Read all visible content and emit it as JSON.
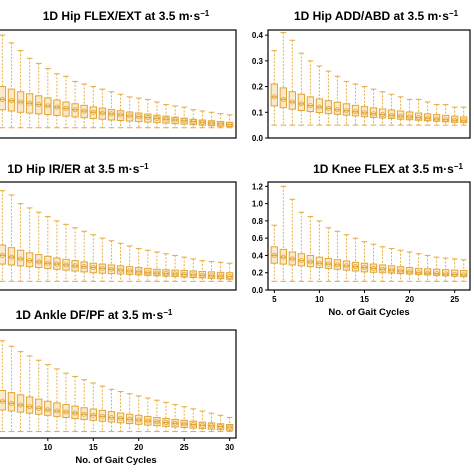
{
  "chart_data": [
    {
      "type": "box",
      "title": "1D Hip FLEX/EXT at 3.5 m·s",
      "title_superscript": "−1",
      "xlabel": "",
      "x_ticks": [],
      "y_ticks": [],
      "gait_cycles": [
        5,
        6,
        7,
        8,
        9,
        10,
        11,
        12,
        13,
        14,
        15,
        16,
        17,
        18,
        19,
        20,
        21,
        22,
        23,
        24,
        25,
        26,
        27,
        28,
        29,
        30
      ],
      "medians": [
        0.15,
        0.145,
        0.14,
        0.135,
        0.13,
        0.125,
        0.12,
        0.115,
        0.11,
        0.105,
        0.1,
        0.097,
        0.094,
        0.09,
        0.086,
        0.083,
        0.08,
        0.076,
        0.073,
        0.07,
        0.067,
        0.064,
        0.061,
        0.058,
        0.055,
        0.052
      ],
      "q1": [
        0.11,
        0.105,
        0.1,
        0.097,
        0.094,
        0.091,
        0.088,
        0.085,
        0.082,
        0.079,
        0.076,
        0.073,
        0.07,
        0.068,
        0.066,
        0.064,
        0.062,
        0.06,
        0.058,
        0.056,
        0.054,
        0.052,
        0.05,
        0.048,
        0.046,
        0.044
      ],
      "q3": [
        0.2,
        0.19,
        0.18,
        0.172,
        0.164,
        0.156,
        0.148,
        0.14,
        0.133,
        0.127,
        0.121,
        0.116,
        0.111,
        0.106,
        0.101,
        0.097,
        0.093,
        0.089,
        0.085,
        0.081,
        0.077,
        0.073,
        0.07,
        0.067,
        0.064,
        0.061
      ],
      "whisker_low": [
        0.04,
        0.04,
        0.04,
        0.04,
        0.04,
        0.04,
        0.04,
        0.04,
        0.04,
        0.04,
        0.04,
        0.04,
        0.04,
        0.04,
        0.04,
        0.04,
        0.04,
        0.04,
        0.04,
        0.04,
        0.04,
        0.04,
        0.04,
        0.04,
        0.04,
        0.04
      ],
      "whisker_high": [
        0.4,
        0.37,
        0.34,
        0.31,
        0.29,
        0.27,
        0.25,
        0.24,
        0.22,
        0.21,
        0.2,
        0.19,
        0.18,
        0.17,
        0.16,
        0.155,
        0.15,
        0.14,
        0.13,
        0.125,
        0.12,
        0.11,
        0.105,
        0.1,
        0.095,
        0.09
      ],
      "ylim": [
        0.0,
        0.42
      ]
    },
    {
      "type": "box",
      "title": "1D Hip ADD/ABD at 3.5 m·s",
      "title_superscript": "−1",
      "xlabel": "",
      "x_ticks": [],
      "y_ticks": [
        "0.0",
        "0.1",
        "0.2",
        "0.3",
        "0.4"
      ],
      "gait_cycles": [
        5,
        6,
        7,
        8,
        9,
        10,
        11,
        12,
        13,
        14,
        15,
        16,
        17,
        18,
        19,
        20,
        21,
        22,
        23,
        24,
        25,
        26
      ],
      "medians": [
        0.16,
        0.15,
        0.14,
        0.133,
        0.126,
        0.12,
        0.115,
        0.11,
        0.106,
        0.102,
        0.098,
        0.094,
        0.091,
        0.088,
        0.085,
        0.082,
        0.079,
        0.077,
        0.074,
        0.071,
        0.069,
        0.067
      ],
      "q1": [
        0.125,
        0.118,
        0.112,
        0.107,
        0.103,
        0.099,
        0.095,
        0.092,
        0.089,
        0.086,
        0.083,
        0.08,
        0.078,
        0.076,
        0.073,
        0.071,
        0.069,
        0.067,
        0.065,
        0.063,
        0.061,
        0.06
      ],
      "q3": [
        0.21,
        0.195,
        0.18,
        0.17,
        0.16,
        0.152,
        0.145,
        0.139,
        0.133,
        0.127,
        0.122,
        0.117,
        0.113,
        0.109,
        0.105,
        0.101,
        0.097,
        0.094,
        0.091,
        0.088,
        0.085,
        0.082
      ],
      "whisker_low": [
        0.05,
        0.05,
        0.05,
        0.05,
        0.05,
        0.05,
        0.05,
        0.05,
        0.05,
        0.05,
        0.05,
        0.05,
        0.05,
        0.05,
        0.05,
        0.05,
        0.05,
        0.05,
        0.05,
        0.05,
        0.05,
        0.05
      ],
      "whisker_high": [
        0.34,
        0.41,
        0.38,
        0.33,
        0.3,
        0.28,
        0.26,
        0.24,
        0.22,
        0.21,
        0.2,
        0.19,
        0.18,
        0.17,
        0.16,
        0.15,
        0.15,
        0.14,
        0.13,
        0.13,
        0.12,
        0.12
      ],
      "ylim": [
        0.0,
        0.42
      ]
    },
    {
      "type": "box",
      "title": "1D Hip IR/ER at 3.5 m·s",
      "title_superscript": "−1",
      "xlabel": "",
      "x_ticks": [],
      "y_ticks": [],
      "gait_cycles": [
        5,
        6,
        7,
        8,
        9,
        10,
        11,
        12,
        13,
        14,
        15,
        16,
        17,
        18,
        19,
        20,
        21,
        22,
        23,
        24,
        25,
        26,
        27,
        28,
        29,
        30
      ],
      "medians": [
        0.4,
        0.38,
        0.36,
        0.34,
        0.325,
        0.31,
        0.3,
        0.29,
        0.28,
        0.27,
        0.26,
        0.25,
        0.24,
        0.23,
        0.22,
        0.21,
        0.2,
        0.195,
        0.19,
        0.185,
        0.18,
        0.175,
        0.17,
        0.165,
        0.16,
        0.155
      ],
      "q1": [
        0.3,
        0.29,
        0.28,
        0.27,
        0.26,
        0.25,
        0.24,
        0.23,
        0.22,
        0.21,
        0.2,
        0.195,
        0.19,
        0.185,
        0.18,
        0.175,
        0.17,
        0.165,
        0.16,
        0.155,
        0.15,
        0.145,
        0.14,
        0.135,
        0.13,
        0.125
      ],
      "q3": [
        0.52,
        0.49,
        0.46,
        0.43,
        0.41,
        0.39,
        0.37,
        0.355,
        0.34,
        0.325,
        0.31,
        0.3,
        0.29,
        0.28,
        0.27,
        0.26,
        0.25,
        0.24,
        0.235,
        0.23,
        0.225,
        0.22,
        0.215,
        0.21,
        0.205,
        0.2
      ],
      "whisker_low": [
        0.1,
        0.1,
        0.1,
        0.1,
        0.1,
        0.1,
        0.1,
        0.1,
        0.1,
        0.1,
        0.1,
        0.1,
        0.1,
        0.1,
        0.1,
        0.1,
        0.1,
        0.1,
        0.1,
        0.1,
        0.1,
        0.1,
        0.1,
        0.1,
        0.1,
        0.1
      ],
      "whisker_high": [
        1.15,
        1.1,
        1.0,
        0.95,
        0.9,
        0.85,
        0.8,
        0.76,
        0.72,
        0.68,
        0.64,
        0.6,
        0.57,
        0.54,
        0.51,
        0.48,
        0.46,
        0.44,
        0.42,
        0.4,
        0.38,
        0.36,
        0.34,
        0.33,
        0.32,
        0.31
      ],
      "ylim": [
        0.0,
        1.25
      ]
    },
    {
      "type": "box",
      "title": "1D Knee FLEX at 3.5 m·s",
      "title_superscript": "−1",
      "xlabel": "No. of Gait Cycles",
      "x_ticks": [
        "5",
        "10",
        "15",
        "20",
        "25"
      ],
      "y_ticks": [
        "0.0",
        "0.2",
        "0.4",
        "0.6",
        "0.8",
        "1.0",
        "1.2"
      ],
      "gait_cycles": [
        5,
        6,
        7,
        8,
        9,
        10,
        11,
        12,
        13,
        14,
        15,
        16,
        17,
        18,
        19,
        20,
        21,
        22,
        23,
        24,
        25,
        26
      ],
      "medians": [
        0.4,
        0.38,
        0.36,
        0.34,
        0.325,
        0.31,
        0.3,
        0.29,
        0.28,
        0.27,
        0.26,
        0.25,
        0.24,
        0.23,
        0.22,
        0.21,
        0.2,
        0.195,
        0.19,
        0.185,
        0.18,
        0.175
      ],
      "q1": [
        0.31,
        0.3,
        0.29,
        0.28,
        0.27,
        0.26,
        0.25,
        0.24,
        0.23,
        0.22,
        0.21,
        0.205,
        0.2,
        0.195,
        0.19,
        0.185,
        0.18,
        0.175,
        0.17,
        0.165,
        0.16,
        0.155
      ],
      "q3": [
        0.5,
        0.47,
        0.44,
        0.42,
        0.4,
        0.38,
        0.365,
        0.35,
        0.335,
        0.32,
        0.31,
        0.3,
        0.29,
        0.28,
        0.27,
        0.26,
        0.25,
        0.245,
        0.24,
        0.235,
        0.23,
        0.225
      ],
      "whisker_low": [
        0.1,
        0.1,
        0.1,
        0.1,
        0.1,
        0.1,
        0.1,
        0.1,
        0.1,
        0.1,
        0.1,
        0.1,
        0.1,
        0.1,
        0.1,
        0.1,
        0.1,
        0.1,
        0.1,
        0.1,
        0.1,
        0.1
      ],
      "whisker_high": [
        0.75,
        1.2,
        1.05,
        0.9,
        0.85,
        0.8,
        0.72,
        0.68,
        0.64,
        0.6,
        0.56,
        0.53,
        0.5,
        0.48,
        0.46,
        0.44,
        0.42,
        0.4,
        0.38,
        0.37,
        0.36,
        0.35
      ],
      "ylim": [
        0.0,
        1.25
      ]
    },
    {
      "type": "box",
      "title": "1D Ankle DF/PF at 3.5 m·s",
      "title_superscript": "−1",
      "xlabel": "No. of Gait Cycles",
      "x_ticks": [
        "10",
        "15",
        "20",
        "25",
        "30"
      ],
      "y_ticks": [],
      "gait_cycles": [
        5,
        6,
        7,
        8,
        9,
        10,
        11,
        12,
        13,
        14,
        15,
        16,
        17,
        18,
        19,
        20,
        21,
        22,
        23,
        24,
        25,
        26,
        27,
        28,
        29,
        30
      ],
      "medians": [
        0.34,
        0.32,
        0.305,
        0.29,
        0.275,
        0.26,
        0.25,
        0.24,
        0.23,
        0.22,
        0.21,
        0.2,
        0.19,
        0.182,
        0.174,
        0.166,
        0.158,
        0.15,
        0.143,
        0.136,
        0.13,
        0.124,
        0.118,
        0.112,
        0.106,
        0.1
      ],
      "q1": [
        0.26,
        0.25,
        0.24,
        0.23,
        0.22,
        0.21,
        0.2,
        0.19,
        0.18,
        0.172,
        0.164,
        0.156,
        0.148,
        0.141,
        0.134,
        0.127,
        0.12,
        0.114,
        0.108,
        0.102,
        0.097,
        0.092,
        0.087,
        0.082,
        0.077,
        0.072
      ],
      "q3": [
        0.44,
        0.42,
        0.4,
        0.38,
        0.36,
        0.34,
        0.325,
        0.31,
        0.295,
        0.28,
        0.268,
        0.256,
        0.244,
        0.232,
        0.22,
        0.21,
        0.2,
        0.19,
        0.18,
        0.172,
        0.164,
        0.156,
        0.148,
        0.14,
        0.132,
        0.125
      ],
      "whisker_low": [
        0.06,
        0.06,
        0.06,
        0.06,
        0.06,
        0.06,
        0.06,
        0.06,
        0.06,
        0.06,
        0.06,
        0.06,
        0.06,
        0.06,
        0.06,
        0.06,
        0.06,
        0.06,
        0.06,
        0.06,
        0.06,
        0.06,
        0.06,
        0.06,
        0.06,
        0.06
      ],
      "whisker_high": [
        0.9,
        0.85,
        0.8,
        0.76,
        0.72,
        0.68,
        0.64,
        0.6,
        0.57,
        0.54,
        0.51,
        0.48,
        0.45,
        0.43,
        0.41,
        0.39,
        0.37,
        0.35,
        0.33,
        0.31,
        0.29,
        0.27,
        0.25,
        0.23,
        0.21,
        0.19
      ],
      "ylim": [
        0.0,
        1.0
      ]
    }
  ],
  "colors": {
    "box_stroke": "#e3a535",
    "box_fill": "#f6d9a1",
    "whisker": "#e8b04a",
    "axis": "#000000"
  }
}
